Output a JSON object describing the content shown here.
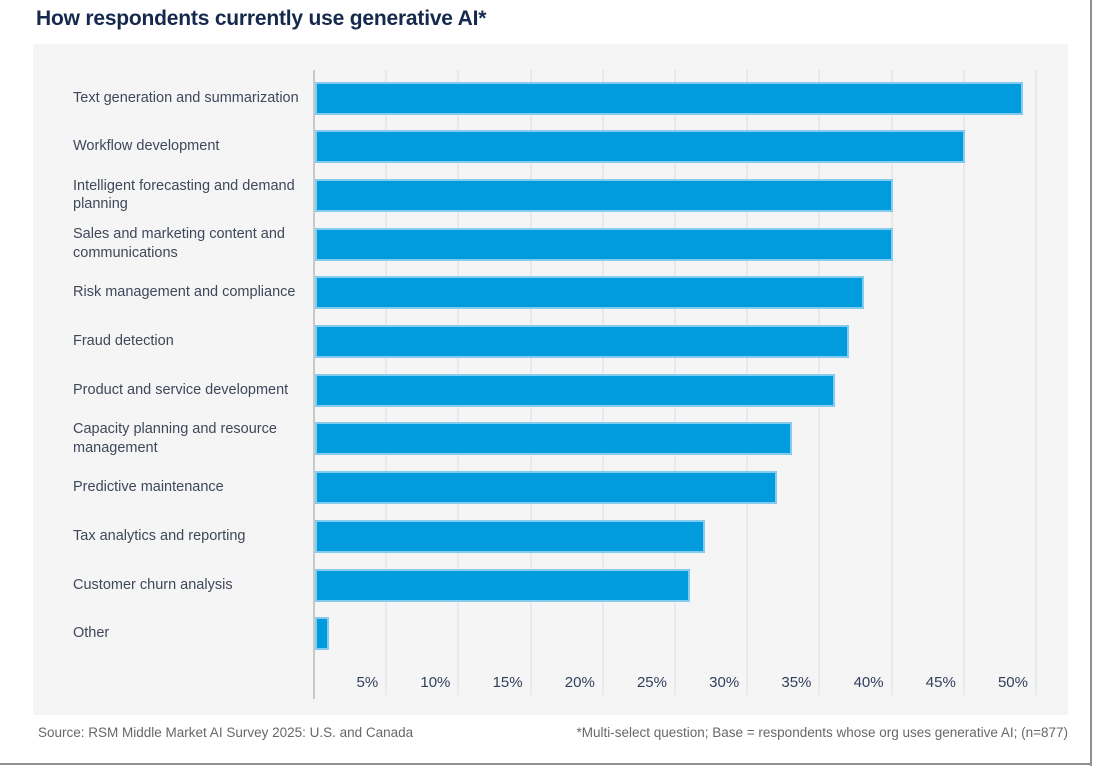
{
  "chart_data": {
    "type": "bar",
    "orientation": "horizontal",
    "title": "How respondents currently use generative AI*",
    "categories": [
      "Text generation and summarization",
      "Workflow development",
      "Intelligent forecasting and demand planning",
      "Sales and marketing content and communications",
      "Risk management and compliance",
      "Fraud detection",
      "Product and service development",
      "Capacity planning and resource management",
      "Predictive maintenance",
      "Tax analytics and reporting",
      "Customer churn analysis",
      "Other"
    ],
    "values": [
      49,
      45,
      40,
      40,
      38,
      37,
      36,
      33,
      32,
      27,
      26,
      1
    ],
    "unit": "%",
    "xlim": [
      0,
      50
    ],
    "xticks": [
      "5%",
      "10%",
      "15%",
      "20%",
      "25%",
      "30%",
      "35%",
      "40%",
      "45%",
      "50%"
    ],
    "grid": "vertical-only",
    "legend": "none",
    "colors": {
      "bar_fill": "#009CDE",
      "bar_border": "#85CBED",
      "panel_background": "#F5F5F6",
      "title_text": "#14294D",
      "category_text": "#3E4859",
      "tick_text": "#31405C",
      "gridline": "#E8E9EA",
      "axis_line": "#C7C9CB",
      "footer_text": "#65686B"
    }
  },
  "footer": {
    "source": "Source: RSM Middle Market AI Survey 2025: U.S. and Canada",
    "footnote": "*Multi-select question; Base = respondents whose org uses generative AI; (n=877)"
  }
}
